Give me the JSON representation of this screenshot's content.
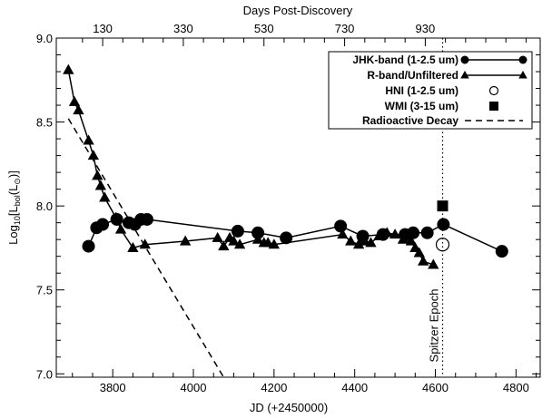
{
  "chart_data": {
    "type": "line",
    "xlabel": "JD (+2450000)",
    "ylabel_main": "Log",
    "ylabel_sub": "10",
    "ylabel_rest": "[L",
    "ylabel_sub2": "bol",
    "ylabel_rest2": "(L",
    "ylabel_sub3": "⊙",
    "ylabel_end": ")]",
    "x2label": "Days Post-Discovery",
    "xlim": [
      3660,
      4860
    ],
    "ylim": [
      6.98,
      9.0
    ],
    "xticks": [
      3800,
      4000,
      4200,
      4400,
      4600,
      4800
    ],
    "yticks": [
      7.0,
      7.5,
      8.0,
      8.5,
      9.0
    ],
    "ytick_labels": [
      "7.0",
      "7.5",
      "8.0",
      "8.5",
      "9.0"
    ],
    "x2ticks": [
      {
        "label": "130",
        "jd": 3775
      },
      {
        "label": "330",
        "jd": 3975
      },
      {
        "label": "530",
        "jd": 4175
      },
      {
        "label": "730",
        "jd": 4375
      },
      {
        "label": "930",
        "jd": 4575
      }
    ],
    "annotation": "Spitzer Epoch",
    "spitzer_epoch_jd": 4618,
    "series": [
      {
        "name": "JHK-band (1-2.5 um)",
        "marker": "circle",
        "x": [
          3740,
          3760,
          3775,
          3810,
          3840,
          3855,
          3870,
          3885,
          4110,
          4160,
          4230,
          4365,
          4420,
          4470,
          4525,
          4545,
          4580,
          4620,
          4765
        ],
        "y": [
          7.76,
          7.87,
          7.89,
          7.92,
          7.9,
          7.89,
          7.92,
          7.92,
          7.85,
          7.84,
          7.81,
          7.88,
          7.82,
          7.83,
          7.83,
          7.84,
          7.84,
          7.89,
          7.73
        ]
      },
      {
        "name": "R-band/Unfiltered",
        "marker": "triangle",
        "x": [
          3690,
          3705,
          3715,
          3740,
          3752,
          3762,
          3770,
          3780,
          3808,
          3820,
          3850,
          3880,
          3980,
          4060,
          4075,
          4090,
          4100,
          4115,
          4160,
          4175,
          4185,
          4200,
          4370,
          4390,
          4410,
          4425,
          4440,
          4460,
          4480,
          4500,
          4520,
          4540,
          4550,
          4560,
          4570,
          4595
        ],
        "y": [
          8.81,
          8.62,
          8.57,
          8.39,
          8.3,
          8.18,
          8.12,
          8.05,
          7.93,
          7.86,
          7.75,
          7.77,
          7.79,
          7.81,
          7.76,
          7.81,
          7.79,
          7.77,
          7.8,
          7.78,
          7.78,
          7.77,
          7.83,
          7.79,
          7.77,
          7.79,
          7.78,
          7.82,
          7.84,
          7.83,
          7.8,
          7.79,
          7.75,
          7.72,
          7.67,
          7.65
        ]
      },
      {
        "name": "HNI (1-2.5 um)",
        "marker": "open-circle",
        "x": [
          4618
        ],
        "y": [
          7.77
        ]
      },
      {
        "name": "WMI (3-15 um)",
        "marker": "square",
        "x": [
          4618
        ],
        "y": [
          8.0
        ]
      },
      {
        "name": "Radioactive Decay",
        "marker": "dashed-line",
        "x": [
          3690,
          4075
        ],
        "y": [
          8.52,
          6.98
        ]
      }
    ],
    "legend_position": "top-right",
    "grid": false
  }
}
